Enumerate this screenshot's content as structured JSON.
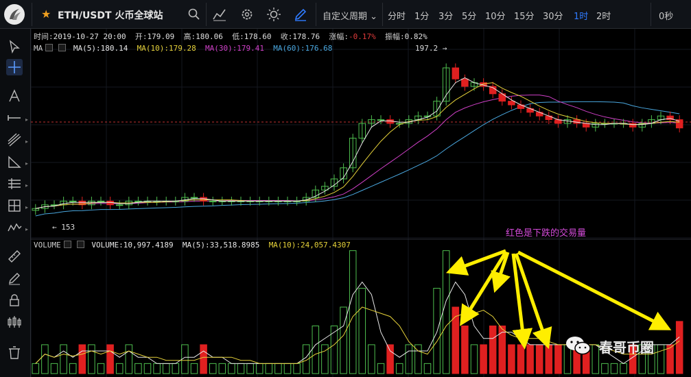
{
  "header": {
    "symbol": "ETH/USDT 火币全球站",
    "custom_period_label": "自定义周期",
    "periods": [
      "分时",
      "1分",
      "3分",
      "5分",
      "10分",
      "15分",
      "30分",
      "1时",
      "2时"
    ],
    "active_period": "1时",
    "seconds_label": "0秒",
    "accent_color": "#2f7bff",
    "star_color": "#f0a020"
  },
  "candle_info": {
    "time_label": "时间:",
    "time": "2019-10-27 20:00",
    "open_label": "开:",
    "open": "179.09",
    "high_label": "高:",
    "high": "180.06",
    "low_label": "低:",
    "low": "178.60",
    "close_label": "收:",
    "close": "178.76",
    "change_label": "涨幅:",
    "change": "-0.17%",
    "amplitude_label": "振幅:",
    "amplitude": "0.82%"
  },
  "ma_info": {
    "label": "MA",
    "ma5": "MA(5):180.14",
    "ma10": "MA(10):179.28",
    "ma30": "MA(30):179.41",
    "ma60": "MA(60):176.68",
    "colors": {
      "ma5": "#e8e8e8",
      "ma10": "#e6d23a",
      "ma30": "#d040c8",
      "ma60": "#4aa8e0"
    }
  },
  "volume_info": {
    "label": "VOLUME",
    "volume": "VOLUME:10,997.4189",
    "ma5": "MA(5):33,518.8985",
    "ma10": "MA(10):24,057.4307"
  },
  "price_labels": {
    "high_marker": "197.2",
    "low_marker": "153"
  },
  "annotation": "红色是下跌的交易量",
  "watermark": "春哥币圈",
  "colors": {
    "up": "#4fbf4f",
    "down": "#e02020",
    "price_line": "#c03030"
  },
  "icons": {
    "top": [
      "search-icon",
      "indicator-icon",
      "settings-icon",
      "theme-icon",
      "draw-pen-icon"
    ],
    "left": [
      "cursor-icon",
      "crosshair-icon",
      "text-icon",
      "horizontal-line-icon",
      "trend-lines-icon",
      "triangle-icon",
      "parallel-lines-icon",
      "fibonacci-grid-icon",
      "wave-icon",
      "ruler-icon",
      "pencil-icon",
      "lock-icon",
      "candles-icon",
      "trash-icon"
    ]
  },
  "chart_data": {
    "type": "candlestick",
    "title": "",
    "price_range": [
      153,
      197.2
    ],
    "candles_close_approx": [
      157,
      158,
      158,
      159,
      159,
      158,
      159,
      159,
      158,
      158,
      159,
      159,
      159,
      159,
      159,
      159,
      160,
      160,
      159,
      159,
      159,
      159,
      159,
      159,
      159,
      159,
      159,
      159,
      159,
      160,
      162,
      163,
      165,
      168,
      176,
      180,
      181,
      181,
      180,
      180,
      181,
      182,
      182,
      186,
      195,
      192,
      190,
      191,
      190,
      188,
      186,
      185,
      184,
      183,
      182,
      181,
      180,
      181,
      180,
      179,
      180,
      180,
      180,
      180,
      179,
      180,
      181,
      182,
      181,
      178.76
    ],
    "volume_series": "MA(5), MA(10)",
    "annotation": "红色是下跌的交易量"
  }
}
